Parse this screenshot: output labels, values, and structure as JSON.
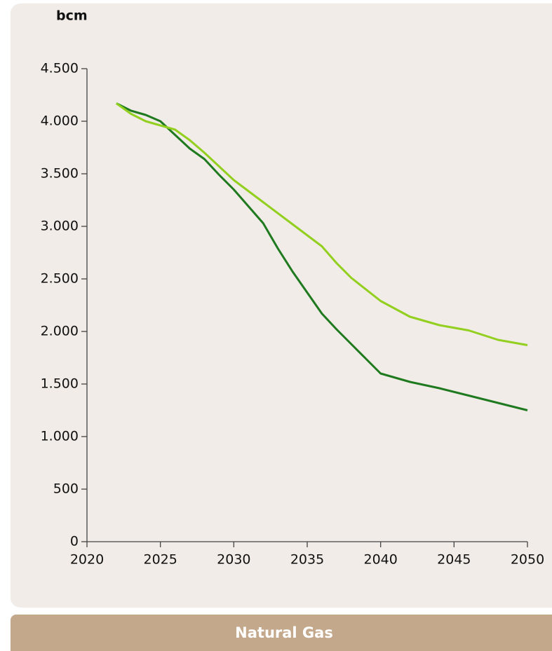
{
  "chart_data": {
    "type": "line",
    "y_label": "bcm",
    "xlim": [
      2020,
      2050
    ],
    "xticks": [
      2020,
      2025,
      2030,
      2035,
      2040,
      2045,
      2050
    ],
    "ylim": [
      0,
      4500
    ],
    "yticks": [
      0,
      500,
      {
        "value": 1000,
        "label": "1.000"
      },
      {
        "value": 1500,
        "label": "1.500"
      },
      {
        "value": 2000,
        "label": "2.000"
      },
      {
        "value": 2500,
        "label": "2.500"
      },
      {
        "value": 3000,
        "label": "3.000"
      },
      {
        "value": 3500,
        "label": "3.500"
      },
      {
        "value": 4000,
        "label": "4.000"
      },
      {
        "value": 4500,
        "label": "4.500"
      }
    ],
    "grid": false,
    "series": [
      {
        "color": "#1f7a1f",
        "x": [
          2022,
          2023,
          2024,
          2025,
          2026,
          2027,
          2028,
          2029,
          2030,
          2031,
          2032,
          2033,
          2034,
          2035,
          2036,
          2037,
          2038,
          2039,
          2040,
          2042,
          2044,
          2046,
          2048,
          2050
        ],
        "values": [
          4170,
          4100,
          4060,
          4000,
          3870,
          3740,
          3640,
          3490,
          3350,
          3190,
          3030,
          2790,
          2570,
          2370,
          2170,
          2020,
          1880,
          1740,
          1600,
          1520,
          1460,
          1390,
          1320,
          1250
        ]
      },
      {
        "color": "#92cf1e",
        "x": [
          2022,
          2023,
          2024,
          2025,
          2026,
          2027,
          2028,
          2029,
          2030,
          2032,
          2034,
          2036,
          2037,
          2038,
          2040,
          2042,
          2044,
          2046,
          2048,
          2050
        ],
        "values": [
          4170,
          4070,
          4000,
          3960,
          3920,
          3820,
          3700,
          3570,
          3440,
          3230,
          3020,
          2810,
          2650,
          2510,
          2290,
          2140,
          2060,
          2010,
          1920,
          1870
        ]
      }
    ]
  },
  "banner": "Natural Gas"
}
